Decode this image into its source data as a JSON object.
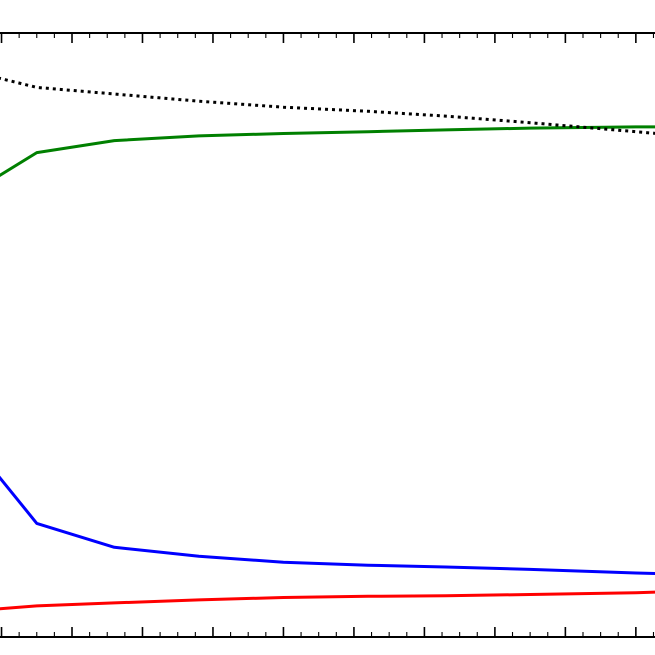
{
  "chart_data": {
    "type": "line",
    "title": "",
    "xlabel": "",
    "ylabel": "",
    "xlim": [
      -0.05,
      9.3
    ],
    "ylim": [
      -0.03,
      0.98
    ],
    "grid": false,
    "legend": "none",
    "x": [
      0.5,
      1.6,
      2.8,
      4.0,
      5.2,
      6.3,
      7.5,
      9.0,
      9.3
    ],
    "series": [
      {
        "color": "#0000ff",
        "style": "solid",
        "values": [
          0.16,
          0.12,
          0.105,
          0.095,
          0.09,
          0.087,
          0.083,
          0.077,
          0.076
        ]
      },
      {
        "color": "#008000",
        "style": "solid",
        "values": [
          0.78,
          0.8,
          0.808,
          0.812,
          0.815,
          0.818,
          0.821,
          0.823,
          0.823
        ]
      },
      {
        "color": "#ff0000",
        "style": "solid",
        "values": [
          0.022,
          0.027,
          0.032,
          0.036,
          0.038,
          0.039,
          0.041,
          0.044,
          0.045
        ]
      },
      {
        "color": "#000000",
        "style": "dotted",
        "values": [
          0.889,
          0.878,
          0.866,
          0.856,
          0.849,
          0.841,
          0.83,
          0.815,
          0.812
        ]
      }
    ],
    "series_extra_start": [
      {
        "x": -0.05,
        "values": [
          0.24,
          0.74,
          0.017,
          0.905
        ]
      }
    ]
  }
}
